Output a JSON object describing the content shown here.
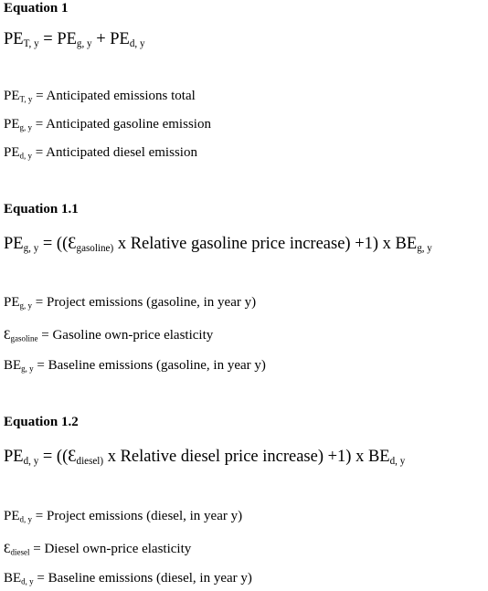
{
  "sections": [
    {
      "heading": "Equation 1",
      "equation": [
        {
          "text": "PE",
          "sub": "T, y"
        },
        {
          "text": " = PE",
          "sub": "g, y"
        },
        {
          "text": " + PE",
          "sub": "d, y"
        }
      ],
      "definitions": [
        [
          {
            "text": "PE",
            "sub": "T, y"
          },
          {
            "text": " = Anticipated emissions total"
          }
        ],
        [
          {
            "text": "PE",
            "sub": "g, y"
          },
          {
            "text": " = Anticipated gasoline emission"
          }
        ],
        [
          {
            "text": "PE",
            "sub": "d, y"
          },
          {
            "text": " = Anticipated diesel emission"
          }
        ]
      ]
    },
    {
      "heading": "Equation 1.1",
      "equation": [
        {
          "text": "PE",
          "sub": "g, y"
        },
        {
          "text": " = ((Ɛ",
          "sub": "gasoline)"
        },
        {
          "text": " x Relative gasoline price increase) +1) x BE",
          "sub": "g, y"
        }
      ],
      "definitions": [
        [
          {
            "text": "PE",
            "sub": "g, y"
          },
          {
            "text": " = Project emissions (gasoline, in year y)"
          }
        ],
        [
          {
            "text": "Ɛ",
            "sub": "gasoline"
          },
          {
            "text": " = Gasoline own-price elasticity"
          }
        ],
        [
          {
            "text": "BE",
            "sub": "g, y"
          },
          {
            "text": " = Baseline emissions (gasoline, in year y)"
          }
        ]
      ]
    },
    {
      "heading": "Equation 1.2",
      "equation": [
        {
          "text": "PE",
          "sub": "d, y"
        },
        {
          "text": " = ((Ɛ",
          "sub": "diesel)"
        },
        {
          "text": " x Relative diesel price increase) +1) x BE",
          "sub": "d, y"
        }
      ],
      "definitions": [
        [
          {
            "text": "PE",
            "sub": "d, y"
          },
          {
            "text": " = Project emissions (diesel, in year y)"
          }
        ],
        [
          {
            "text": "Ɛ",
            "sub": "diesel"
          },
          {
            "text": " = Diesel own-price elasticity"
          }
        ],
        [
          {
            "text": "BE",
            "sub": "d, y"
          },
          {
            "text": " = Baseline emissions (diesel, in year y)"
          }
        ]
      ]
    }
  ]
}
